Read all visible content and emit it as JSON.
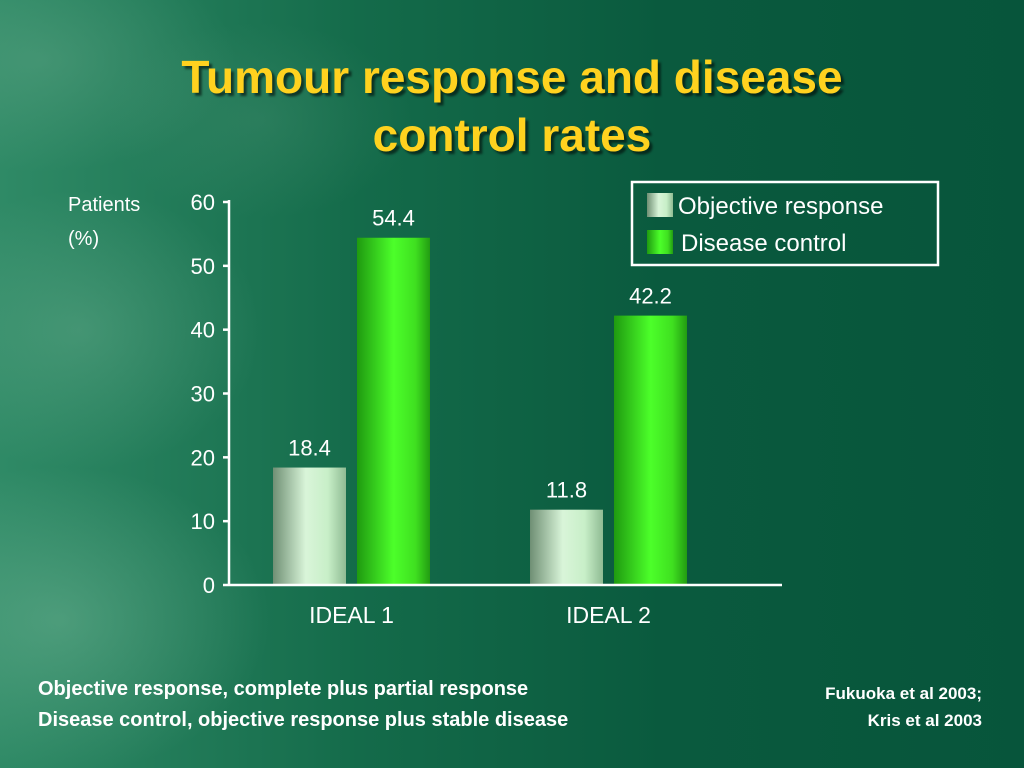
{
  "slide": {
    "title_line1": "Tumour response and disease",
    "title_line2": "control rates",
    "footnotes": [
      "Objective response, complete plus partial response",
      "Disease control, objective response plus stable disease"
    ],
    "citation_line1": "Fukuoka et al 2003;",
    "citation_line2": "Kris et al 2003"
  },
  "colors": {
    "title": "#ffd21f",
    "objective_response": "#c8f0c8",
    "disease_control": "#33e81a",
    "text": "#ffffff",
    "background": "#0a5a3e"
  },
  "chart_data": {
    "type": "bar",
    "title": "Tumour response and disease control rates",
    "ylabel_line1": "Patients",
    "ylabel_line2": "(%)",
    "xlabel": "",
    "ylim": [
      0,
      60
    ],
    "yticks": [
      0,
      10,
      20,
      30,
      40,
      50,
      60
    ],
    "categories": [
      "IDEAL 1",
      "IDEAL 2"
    ],
    "series": [
      {
        "name": "Objective response",
        "values": [
          18.4,
          11.8
        ],
        "color": "#c8f0c8"
      },
      {
        "name": "Disease control",
        "values": [
          54.4,
          42.2
        ],
        "color": "#33e81a"
      }
    ],
    "data_labels": [
      [
        "18.4",
        "11.8"
      ],
      [
        "54.4",
        "42.2"
      ]
    ],
    "legend_position": "top-right",
    "grid": false
  }
}
